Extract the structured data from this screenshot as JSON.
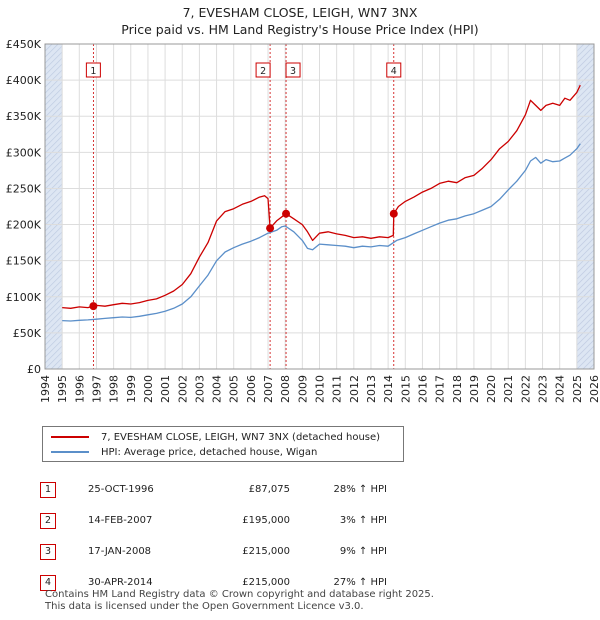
{
  "title_line1": "7, EVESHAM CLOSE, LEIGH, WN7 3NX",
  "title_line2": "Price paid vs. HM Land Registry's House Price Index (HPI)",
  "colors": {
    "property": "#cc0000",
    "hpi": "#5b8fc9",
    "sale_marker": "#cc0000",
    "shade": "#dde6f3"
  },
  "chart_data": {
    "type": "line",
    "title": "Price paid vs. HM Land Registry's House Price Index (HPI)",
    "xlabel": "",
    "ylabel": "",
    "xlim": [
      1994,
      2026
    ],
    "ylim": [
      0,
      450000
    ],
    "grid": true,
    "y_ticks": [
      0,
      50000,
      100000,
      150000,
      200000,
      250000,
      300000,
      350000,
      400000,
      450000
    ],
    "y_tick_labels": [
      "£0",
      "£50K",
      "£100K",
      "£150K",
      "£200K",
      "£250K",
      "£300K",
      "£350K",
      "£400K",
      "£450K"
    ],
    "x_ticks": [
      1994,
      1995,
      1996,
      1997,
      1998,
      1999,
      2000,
      2001,
      2002,
      2003,
      2004,
      2005,
      2006,
      2007,
      2008,
      2009,
      2010,
      2011,
      2012,
      2013,
      2014,
      2015,
      2016,
      2017,
      2018,
      2019,
      2020,
      2021,
      2022,
      2023,
      2024,
      2025,
      2026
    ],
    "x_tick_labels": [
      "1994",
      "1995",
      "1996",
      "1997",
      "1998",
      "1999",
      "2000",
      "2001",
      "2002",
      "2003",
      "2004",
      "2005",
      "2006",
      "2007",
      "2008",
      "2009",
      "2010",
      "2011",
      "2012",
      "2013",
      "2014",
      "2015",
      "2016",
      "2017",
      "2018",
      "2019",
      "2020",
      "2021",
      "2022",
      "2023",
      "2024",
      "2025",
      "2026"
    ],
    "shaded_ranges": [
      [
        1994.0,
        1995.0
      ],
      [
        2025.0,
        2026.0
      ]
    ],
    "series": [
      {
        "name": "7, EVESHAM CLOSE, LEIGH, WN7 3NX (detached house)",
        "color": "#cc0000",
        "x": [
          1995.0,
          1995.5,
          1996.0,
          1996.5,
          1996.82,
          1997.0,
          1997.5,
          1998.0,
          1998.5,
          1999.0,
          1999.5,
          2000.0,
          2000.5,
          2001.0,
          2001.5,
          2002.0,
          2002.5,
          2003.0,
          2003.5,
          2004.0,
          2004.5,
          2005.0,
          2005.5,
          2006.0,
          2006.5,
          2006.8,
          2007.0,
          2007.12,
          2007.5,
          2008.05,
          2008.5,
          2009.0,
          2009.3,
          2009.6,
          2010.0,
          2010.5,
          2011.0,
          2011.5,
          2012.0,
          2012.5,
          2013.0,
          2013.5,
          2014.0,
          2014.3,
          2014.33,
          2014.6,
          2015.0,
          2015.5,
          2016.0,
          2016.5,
          2017.0,
          2017.5,
          2018.0,
          2018.5,
          2019.0,
          2019.5,
          2020.0,
          2020.5,
          2021.0,
          2021.5,
          2022.0,
          2022.3,
          2022.6,
          2022.9,
          2023.2,
          2023.6,
          2024.0,
          2024.3,
          2024.6,
          2025.0,
          2025.2
        ],
        "values": [
          85000,
          84000,
          86000,
          85000,
          87075,
          88000,
          87000,
          89000,
          91000,
          90000,
          92000,
          95000,
          97000,
          102000,
          108000,
          117000,
          132000,
          155000,
          175000,
          205000,
          218000,
          222000,
          228000,
          232000,
          238000,
          240000,
          236000,
          195000,
          205000,
          215000,
          208000,
          200000,
          190000,
          178000,
          188000,
          190000,
          187000,
          185000,
          182000,
          183000,
          181000,
          183000,
          182000,
          185000,
          215000,
          225000,
          232000,
          238000,
          245000,
          250000,
          257000,
          260000,
          258000,
          265000,
          268000,
          278000,
          290000,
          305000,
          315000,
          330000,
          352000,
          372000,
          365000,
          358000,
          365000,
          368000,
          365000,
          375000,
          372000,
          383000,
          393000
        ]
      },
      {
        "name": "HPI: Average price, detached house, Wigan",
        "color": "#5b8fc9",
        "x": [
          1995.0,
          1995.5,
          1996.0,
          1996.5,
          1997.0,
          1997.5,
          1998.0,
          1998.5,
          1999.0,
          1999.5,
          2000.0,
          2000.5,
          2001.0,
          2001.5,
          2002.0,
          2002.5,
          2003.0,
          2003.5,
          2004.0,
          2004.5,
          2005.0,
          2005.5,
          2006.0,
          2006.5,
          2007.0,
          2007.5,
          2007.8,
          2008.0,
          2008.5,
          2009.0,
          2009.3,
          2009.6,
          2010.0,
          2010.5,
          2011.0,
          2011.5,
          2012.0,
          2012.5,
          2013.0,
          2013.5,
          2014.0,
          2014.5,
          2015.0,
          2015.5,
          2016.0,
          2016.5,
          2017.0,
          2017.5,
          2018.0,
          2018.5,
          2019.0,
          2019.5,
          2020.0,
          2020.5,
          2021.0,
          2021.5,
          2022.0,
          2022.3,
          2022.6,
          2022.9,
          2023.2,
          2023.6,
          2024.0,
          2024.3,
          2024.6,
          2025.0,
          2025.2
        ],
        "values": [
          67000,
          66500,
          67500,
          68000,
          69000,
          70000,
          71000,
          72000,
          71500,
          73000,
          75000,
          77000,
          80000,
          84000,
          90000,
          100000,
          115000,
          130000,
          150000,
          162000,
          168000,
          173000,
          177000,
          182000,
          188000,
          192000,
          197000,
          198000,
          190000,
          178000,
          167000,
          165000,
          173000,
          172000,
          171000,
          170000,
          168000,
          170000,
          169000,
          171000,
          170000,
          178000,
          182000,
          187000,
          192000,
          197000,
          202000,
          206000,
          208000,
          212000,
          215000,
          220000,
          225000,
          235000,
          248000,
          260000,
          275000,
          288000,
          293000,
          285000,
          290000,
          287000,
          288000,
          292000,
          296000,
          305000,
          312000
        ]
      }
    ],
    "sales": [
      {
        "label": "1",
        "x": 1996.82,
        "value": 87075
      },
      {
        "label": "2",
        "x": 2007.12,
        "value": 195000
      },
      {
        "label": "3",
        "x": 2008.05,
        "value": 215000
      },
      {
        "label": "4",
        "x": 2014.33,
        "value": 215000
      }
    ]
  },
  "legend": {
    "property_label": "7, EVESHAM CLOSE, LEIGH, WN7 3NX (detached house)",
    "hpi_label": "HPI: Average price, detached house, Wigan"
  },
  "sales_table": [
    {
      "num": "1",
      "date": "25-OCT-1996",
      "price": "£87,075",
      "hpi": "28% ↑ HPI"
    },
    {
      "num": "2",
      "date": "14-FEB-2007",
      "price": "£195,000",
      "hpi": "3% ↑ HPI"
    },
    {
      "num": "3",
      "date": "17-JAN-2008",
      "price": "£215,000",
      "hpi": "9% ↑ HPI"
    },
    {
      "num": "4",
      "date": "30-APR-2014",
      "price": "£215,000",
      "hpi": "27% ↑ HPI"
    }
  ],
  "footer_line1": "Contains HM Land Registry data © Crown copyright and database right 2025.",
  "footer_line2": "This data is licensed under the Open Government Licence v3.0."
}
